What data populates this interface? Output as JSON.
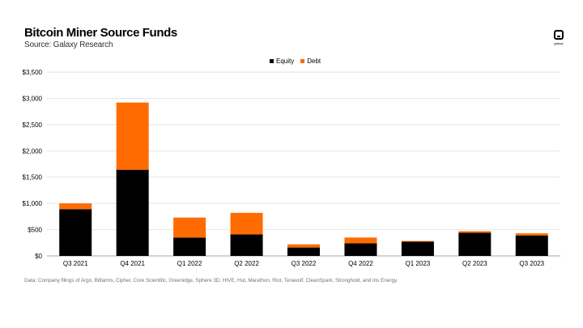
{
  "header": {
    "title": "Bitcoin Miner Source Funds",
    "subtitle": "Source: Galaxy Research",
    "logo_text": "galaxy",
    "logo_icon": "galaxy-logo-icon"
  },
  "footnote": "Data: Company filings of Argo, Bitfarms, Cipher, Core Scientific, Greenidge, Sphere 3D, HIVE, Hut, Marathon, Riot, Terawulf, CleanSpark, Stronghold, and Iris Energy.",
  "colors": {
    "equity": "#000000",
    "debt": "#ff6b00",
    "grid": "#d9d9d9"
  },
  "chart_data": {
    "type": "bar",
    "stacked": true,
    "categories": [
      "Q3 2021",
      "Q4 2021",
      "Q1 2022",
      "Q2 2022",
      "Q3 2022",
      "Q4 2022",
      "Q1 2023",
      "Q2 2023",
      "Q3 2023"
    ],
    "series": [
      {
        "name": "Equity",
        "color": "#000000",
        "values": [
          890,
          1640,
          350,
          410,
          160,
          240,
          270,
          440,
          390
        ]
      },
      {
        "name": "Debt",
        "color": "#ff6b00",
        "values": [
          110,
          1280,
          380,
          410,
          60,
          110,
          15,
          30,
          40
        ]
      }
    ],
    "yticks": [
      "$0",
      "$500",
      "$1,000",
      "$1,500",
      "$2,000",
      "$2,500",
      "$3,000",
      "$3,500"
    ],
    "ylim": [
      0,
      3500
    ],
    "grid": true,
    "legend_position": "top-center"
  }
}
